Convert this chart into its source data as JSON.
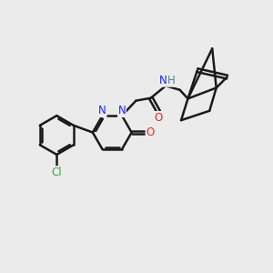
{
  "background_color": "#ebebeb",
  "bond_color": "#1a1a1a",
  "bond_width": 1.8,
  "figsize": [
    3.0,
    3.0
  ],
  "dpi": 100,
  "xlim": [
    0,
    10
  ],
  "ylim": [
    0,
    10
  ],
  "cl_color": "#33aa33",
  "n_color": "#2222ff",
  "o_color": "#ee2222",
  "h_color": "#448888"
}
